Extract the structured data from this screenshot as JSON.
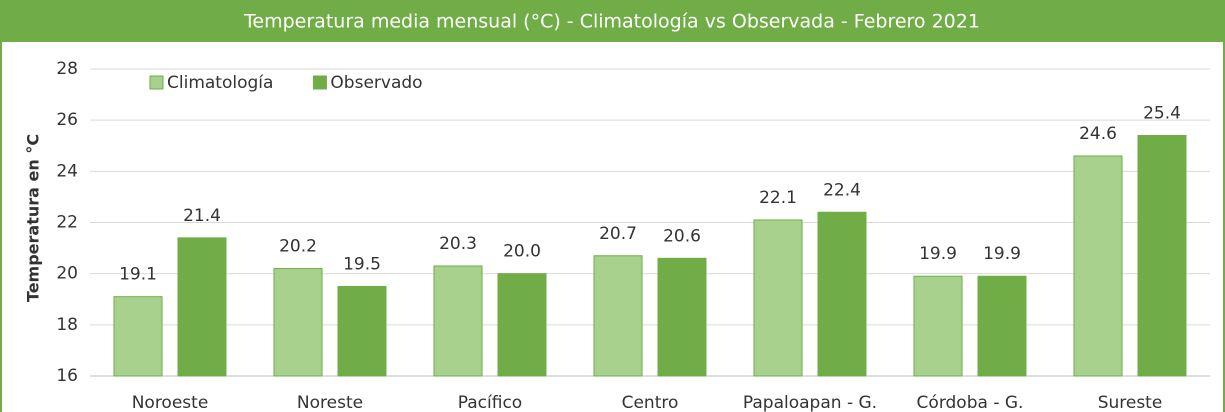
{
  "chart_data": {
    "type": "bar",
    "title": "Temperatura media mensual (°C)  -   Climatología vs Observada  -  Febrero 2021",
    "y_label": "Temperatura en °C",
    "categories": [
      "Noroeste",
      "Noreste",
      "Pacífico",
      "Centro",
      "Papaloapan - G.",
      "Córdoba - G.",
      "Sureste"
    ],
    "series": [
      {
        "name": "Climatología",
        "color": "#a9d18e",
        "values": [
          19.1,
          20.2,
          20.3,
          20.7,
          22.1,
          19.9,
          24.6
        ],
        "value_labels": [
          "19.1",
          "20.2",
          "20.3",
          "20.7",
          "22.1",
          "19.9",
          "24.6"
        ]
      },
      {
        "name": "Observado",
        "color": "#70ad47",
        "values": [
          21.4,
          19.5,
          20.0,
          20.6,
          22.4,
          19.9,
          25.4
        ],
        "value_labels": [
          "21.4",
          "19.5",
          "20.0",
          "20.6",
          "22.4",
          "19.9",
          "25.4"
        ]
      }
    ],
    "ylim": [
      16,
      28
    ],
    "yticks": [
      16,
      18,
      20,
      22,
      24,
      26,
      28
    ],
    "grid": true,
    "legend": "top-left"
  }
}
